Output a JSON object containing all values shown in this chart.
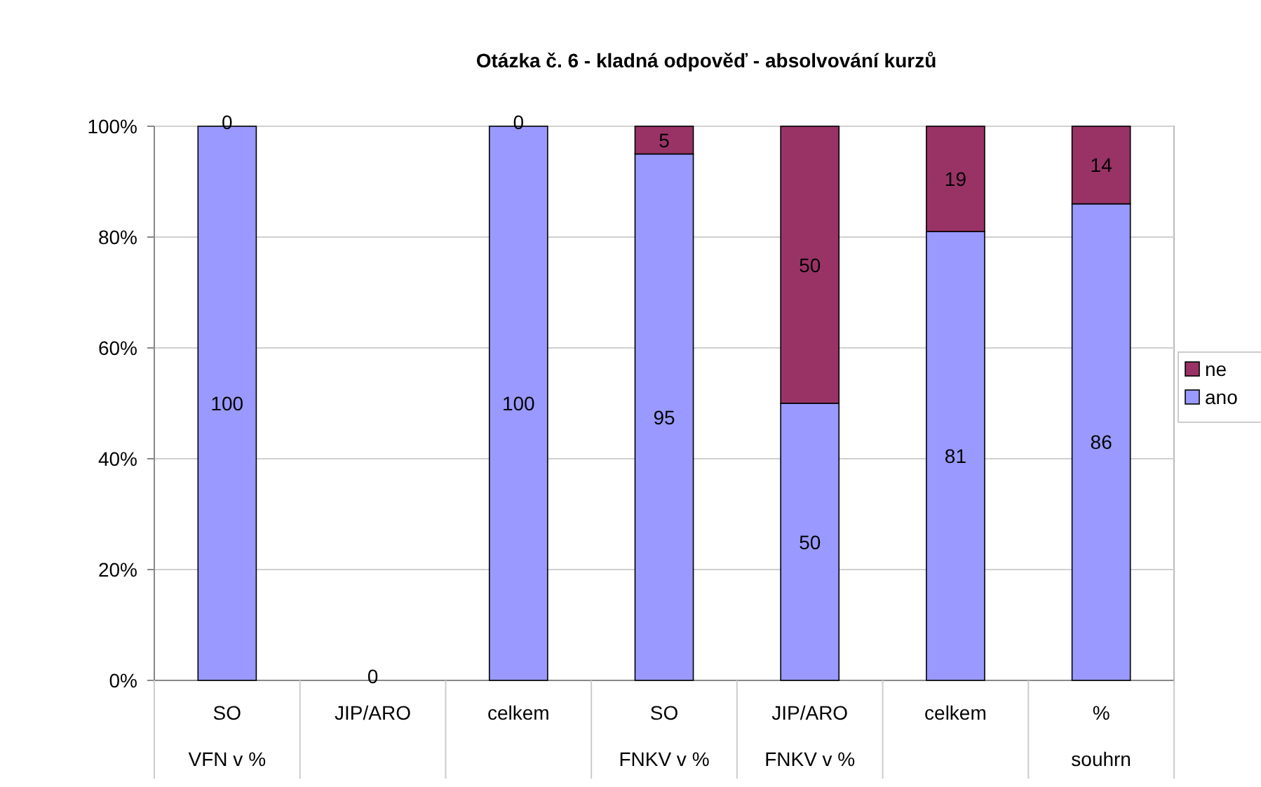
{
  "chart_data": {
    "type": "bar",
    "title": "Otázka č. 6 - kladná odpověď - absolvování kurzů",
    "categories": [
      "SO\nVFN v %",
      "JIP/ARO",
      "celkem",
      "SO\nFNKV v %",
      "JIP/ARO\nFNKV v %",
      "celkem",
      "%\nsouhrn"
    ],
    "series": [
      {
        "name": "ano",
        "color": "#9999ff",
        "values": [
          100,
          0,
          100,
          95,
          50,
          81,
          86
        ]
      },
      {
        "name": "ne",
        "color": "#993366",
        "values": [
          0,
          null,
          0,
          5,
          50,
          19,
          14
        ]
      }
    ],
    "stacked": true,
    "data_labels": true,
    "ylim": [
      0,
      100
    ],
    "yticks": [
      {
        "value": 0,
        "label": "0%"
      },
      {
        "value": 20,
        "label": "20%"
      },
      {
        "value": 40,
        "label": "40%"
      },
      {
        "value": 60,
        "label": "60%"
      },
      {
        "value": 80,
        "label": "80%"
      },
      {
        "value": 100,
        "label": "100%"
      }
    ],
    "grid": "y",
    "legend": "right"
  }
}
